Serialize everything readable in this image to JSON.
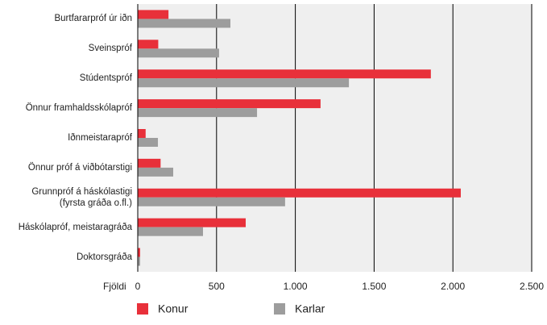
{
  "chart_data": {
    "type": "bar",
    "orientation": "horizontal",
    "categories": [
      "Burtfararpróf úr iðn",
      "Sveinspróf",
      "Stúdentspróf",
      "Önnur framhaldsskólapróf",
      "Iðnmeistarapróf",
      "Önnur próf á viðbótarstigi",
      "Grunnpróf á háskólastigi\n(fyrsta gráða o.fl.)",
      "Háskólapróf, meistaragráða",
      "Doktorsgráða"
    ],
    "series": [
      {
        "name": "Konur",
        "color": "#e8303a",
        "values": [
          195,
          130,
          1860,
          1160,
          50,
          145,
          2050,
          685,
          15
        ]
      },
      {
        "name": "Karlar",
        "color": "#9d9d9d",
        "values": [
          588,
          516,
          1340,
          757,
          128,
          225,
          935,
          414,
          15
        ]
      }
    ],
    "xlabel": "Fjöldi",
    "xlim": [
      0,
      2500
    ],
    "xticks": [
      0,
      500,
      {
        "value": 1000,
        "label": "1.000"
      },
      {
        "value": 1500,
        "label": "1.500"
      },
      {
        "value": 2000,
        "label": "2.000"
      },
      {
        "value": 2500,
        "label": "2.500"
      }
    ],
    "grid": true,
    "legend": "bottom"
  }
}
